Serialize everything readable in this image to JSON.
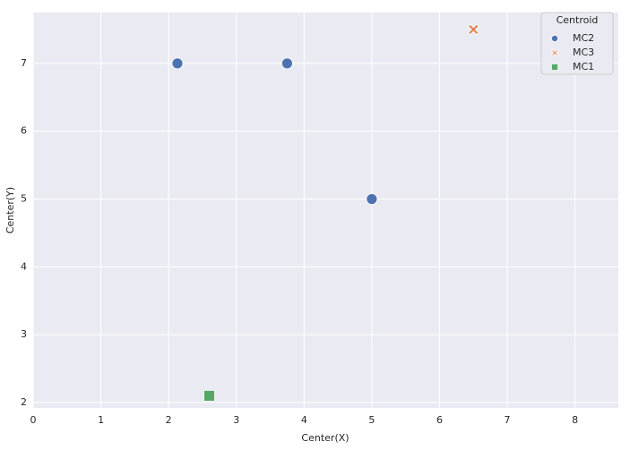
{
  "chart_data": {
    "type": "scatter",
    "xlabel": "Center(X)",
    "ylabel": "Center(Y)",
    "xlim": [
      0,
      8.64
    ],
    "xticks": [
      0,
      1,
      2,
      3,
      4,
      5,
      6,
      7,
      8
    ],
    "ylim": [
      1.92,
      7.75
    ],
    "yticks": [
      2,
      3,
      4,
      5,
      6,
      7
    ],
    "grid": true,
    "legend_title": "Centroid",
    "legend_position": "upper-right",
    "series": [
      {
        "name": "MC2",
        "color": "#4c72b0",
        "marker": "circle",
        "x": [
          2.13,
          3.75,
          5.0
        ],
        "values": [
          7,
          7,
          5
        ]
      },
      {
        "name": "MC3",
        "color": "#dd8452",
        "marker": "x",
        "x": [
          6.5
        ],
        "values": [
          7.5
        ]
      },
      {
        "name": "MC1",
        "color": "#55a868",
        "marker": "square",
        "x": [
          2.6
        ],
        "values": [
          2.1
        ]
      }
    ]
  }
}
